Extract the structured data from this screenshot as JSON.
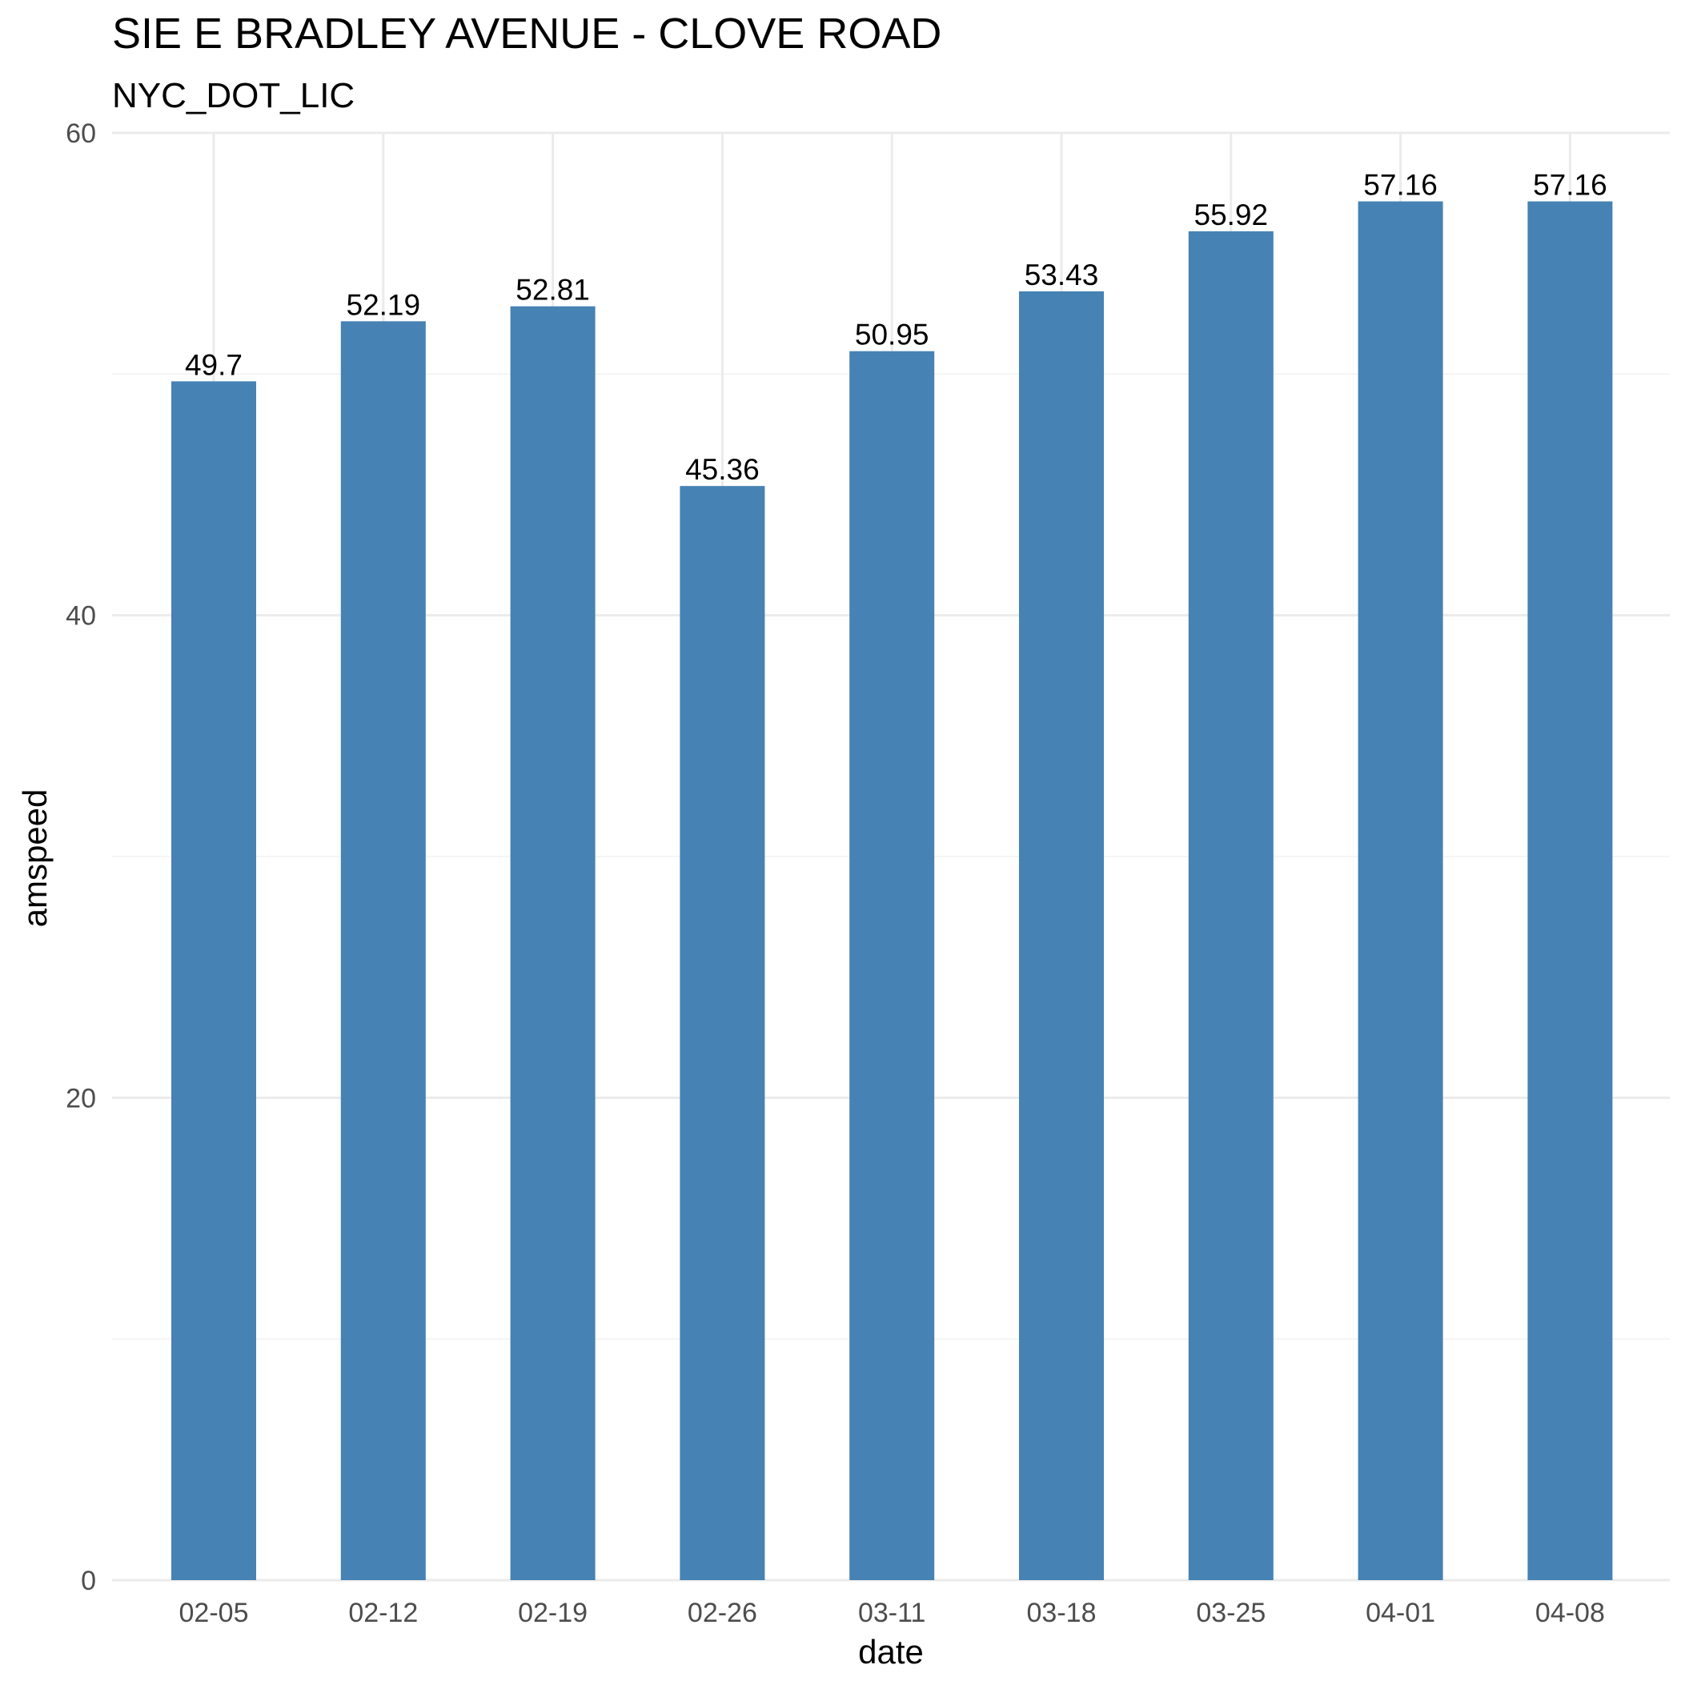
{
  "chart_data": {
    "type": "bar",
    "title": "SIE E BRADLEY AVENUE - CLOVE ROAD",
    "subtitle": "NYC_DOT_LIC",
    "xlabel": "date",
    "ylabel": "amspeed",
    "categories": [
      "02-05",
      "02-12",
      "02-19",
      "02-26",
      "03-11",
      "03-18",
      "03-25",
      "04-01",
      "04-08"
    ],
    "values": [
      49.7,
      52.19,
      52.81,
      45.36,
      50.95,
      53.43,
      55.92,
      57.16,
      57.16
    ],
    "value_labels": [
      "49.7",
      "52.19",
      "52.81",
      "45.36",
      "50.95",
      "53.43",
      "55.92",
      "57.16",
      "57.16"
    ],
    "ylim": [
      0,
      60
    ],
    "y_ticks": [
      0,
      20,
      40,
      60
    ],
    "y_tick_labels": [
      "0",
      "20",
      "40",
      "60"
    ],
    "grid": true,
    "legend": "none",
    "colors": {
      "bar": "#4682b4",
      "grid_major": "#ebebeb",
      "grid_minor": "#f2f2f2",
      "tick_text": "#4d4d4d",
      "text": "#000000"
    }
  }
}
